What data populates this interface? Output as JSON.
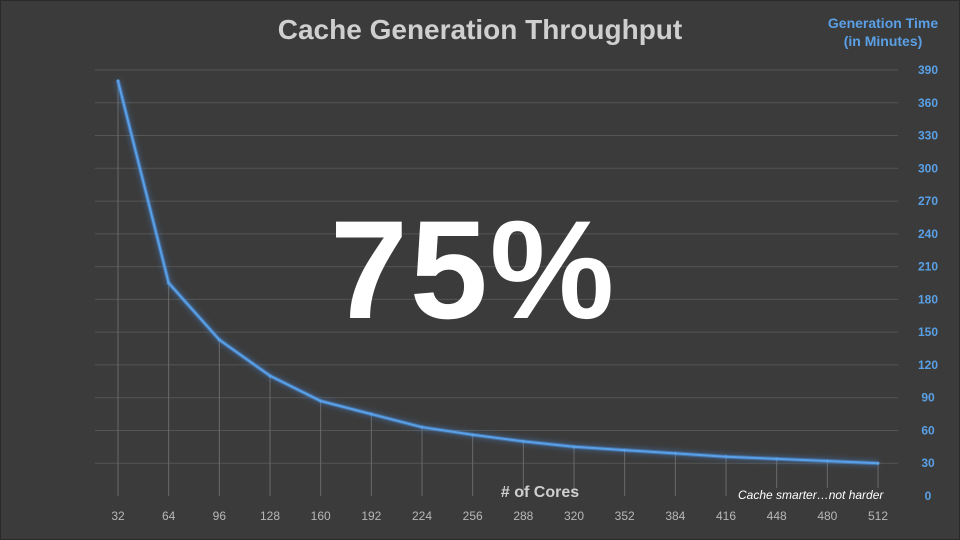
{
  "chart_data": {
    "type": "line",
    "title": "Cache Generation Throughput",
    "xlabel": "# of Cores",
    "ylabel": "Generation Time\n(in Minutes)",
    "categories": [
      "32",
      "64",
      "96",
      "128",
      "160",
      "192",
      "224",
      "256",
      "288",
      "320",
      "352",
      "384",
      "416",
      "448",
      "480",
      "512"
    ],
    "series": [
      {
        "values": [
          380,
          195,
          143,
          110,
          87,
          75,
          63,
          56,
          50,
          45,
          42,
          39,
          36,
          34,
          32,
          30
        ]
      }
    ],
    "y_ticks": [
      0,
      30,
      60,
      90,
      120,
      150,
      180,
      210,
      240,
      270,
      300,
      330,
      360,
      390
    ],
    "ylim": [
      0,
      390
    ],
    "y_axis_position": "right",
    "grid": true,
    "line_color": "#5aa0e6"
  },
  "overlay": {
    "headline": "75%",
    "tagline": "Cache smarter…not harder"
  }
}
